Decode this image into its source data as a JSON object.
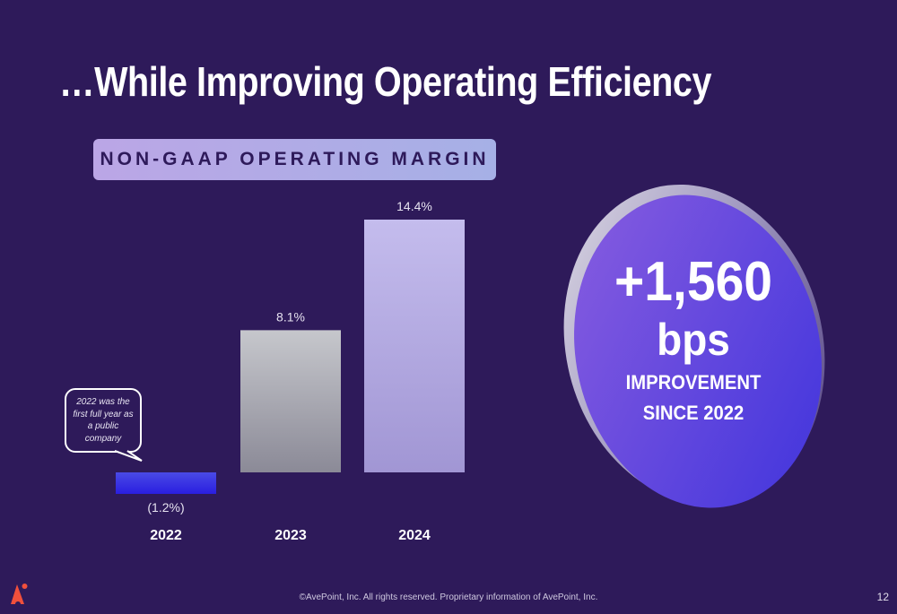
{
  "slide": {
    "title": "…While Improving Operating Efficiency",
    "section_label": "NON-GAAP OPERATING MARGIN",
    "callout_text": "2022 was the first full year as a public company",
    "highlight": {
      "value": "+1,560",
      "unit": "bps",
      "line1": "IMPROVEMENT",
      "line2": "SINCE 2022"
    },
    "footer": "©AvePoint, Inc. All rights reserved. Proprietary information of AvePoint, Inc.",
    "page_number": "12",
    "logo": "avepoint-logo-icon"
  },
  "colors": {
    "background": "#2e1a5a",
    "bar_2022": [
      "#4a4ae6",
      "#2a1ee0"
    ],
    "bar_2023": [
      "#c6c7cc",
      "#8b8a97"
    ],
    "bar_2024": [
      "#c4bced",
      "#a196d4"
    ],
    "circle": [
      "#8a5ee0",
      "#3e33dc"
    ],
    "logo": "#f0503c"
  },
  "chart_data": {
    "type": "bar",
    "title": "NON-GAAP OPERATING MARGIN",
    "xlabel": "",
    "ylabel": "",
    "categories": [
      "2022",
      "2023",
      "2024"
    ],
    "values": [
      -1.2,
      8.1,
      14.4
    ],
    "data_labels": [
      "(1.2%)",
      "8.1%",
      "14.4%"
    ],
    "ylim": [
      -1.2,
      14.4
    ],
    "grid": false,
    "legend": "none"
  }
}
